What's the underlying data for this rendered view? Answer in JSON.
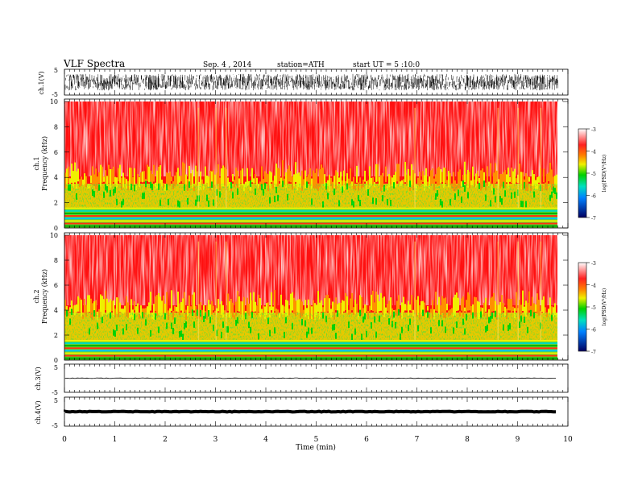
{
  "header": {
    "title": "VLF Spectra",
    "date": "Sep. 4 , 2014",
    "station": "station=ATH",
    "start_time": "start UT = 5 :10:0"
  },
  "colors": {
    "spec_low": "#000080",
    "spec_mid_low": "#00c0ff",
    "spec_mid": "#00d000",
    "spec_mid_high": "#f0f000",
    "spec_high": "#ff1010",
    "spec_top": "#ffffff"
  },
  "chart_data": [
    {
      "type": "line",
      "panel": "ch1-waveform",
      "ylabel": "ch.1(V)",
      "ylim": [
        -5,
        5
      ],
      "yticks": [
        "5",
        "-5"
      ],
      "description_of_signal": "dense broadband noise spanning about -3 to +3 V"
    },
    {
      "type": "heatmap",
      "panel": "ch1-spectrogram",
      "ylabel_line1": "ch.1",
      "ylabel_line2": "Frequency (kHz)",
      "ylim": [
        0,
        10
      ],
      "yticks": [
        "0",
        "2",
        "4",
        "6",
        "8",
        "10"
      ],
      "xlim": [
        0,
        9.8
      ],
      "colorbar": {
        "label": "log(PSD(V²/Hz)",
        "range": [
          -7,
          -3
        ],
        "ticks": [
          "-3",
          "-4",
          "-5",
          "-6",
          "-7"
        ]
      },
      "bands_kHz": [
        {
          "from": 0,
          "to": 1.6,
          "level": "green-yellow"
        },
        {
          "from": 1.6,
          "to": 3.5,
          "level": "yellow-green"
        },
        {
          "from": 3.5,
          "to": 10,
          "level": "red-white"
        }
      ]
    },
    {
      "type": "heatmap",
      "panel": "ch2-spectrogram",
      "ylabel_line1": "ch.2",
      "ylabel_line2": "Frequency (kHz)",
      "ylim": [
        0,
        10
      ],
      "yticks": [
        "0",
        "2",
        "4",
        "6",
        "8",
        "10"
      ],
      "xlim": [
        0,
        9.8
      ],
      "colorbar": {
        "label": "log(PSD(V²/Hz)",
        "range": [
          -7,
          -3
        ],
        "ticks": [
          "-3",
          "-4",
          "-5",
          "-6",
          "-7"
        ]
      },
      "bands_kHz": [
        {
          "from": 0,
          "to": 1.6,
          "level": "green-yellow"
        },
        {
          "from": 1.6,
          "to": 3.8,
          "level": "yellow-green"
        },
        {
          "from": 3.8,
          "to": 10,
          "level": "red-white"
        }
      ]
    },
    {
      "type": "line",
      "panel": "ch3-waveform",
      "ylabel": "ch.3(V)",
      "ylim": [
        -5,
        5
      ],
      "yticks": [
        "5",
        "-5"
      ],
      "constant_level": 0
    },
    {
      "type": "line",
      "panel": "ch4-waveform",
      "ylabel": "ch.4(V)",
      "ylim": [
        -5,
        5
      ],
      "yticks": [
        "5",
        "-5"
      ],
      "constant_level": 0
    }
  ],
  "x_axis": {
    "label": "Time (min)",
    "ticks": [
      "0",
      "1",
      "2",
      "3",
      "4",
      "5",
      "6",
      "7",
      "8",
      "9",
      "10"
    ],
    "range": [
      0,
      10
    ]
  }
}
